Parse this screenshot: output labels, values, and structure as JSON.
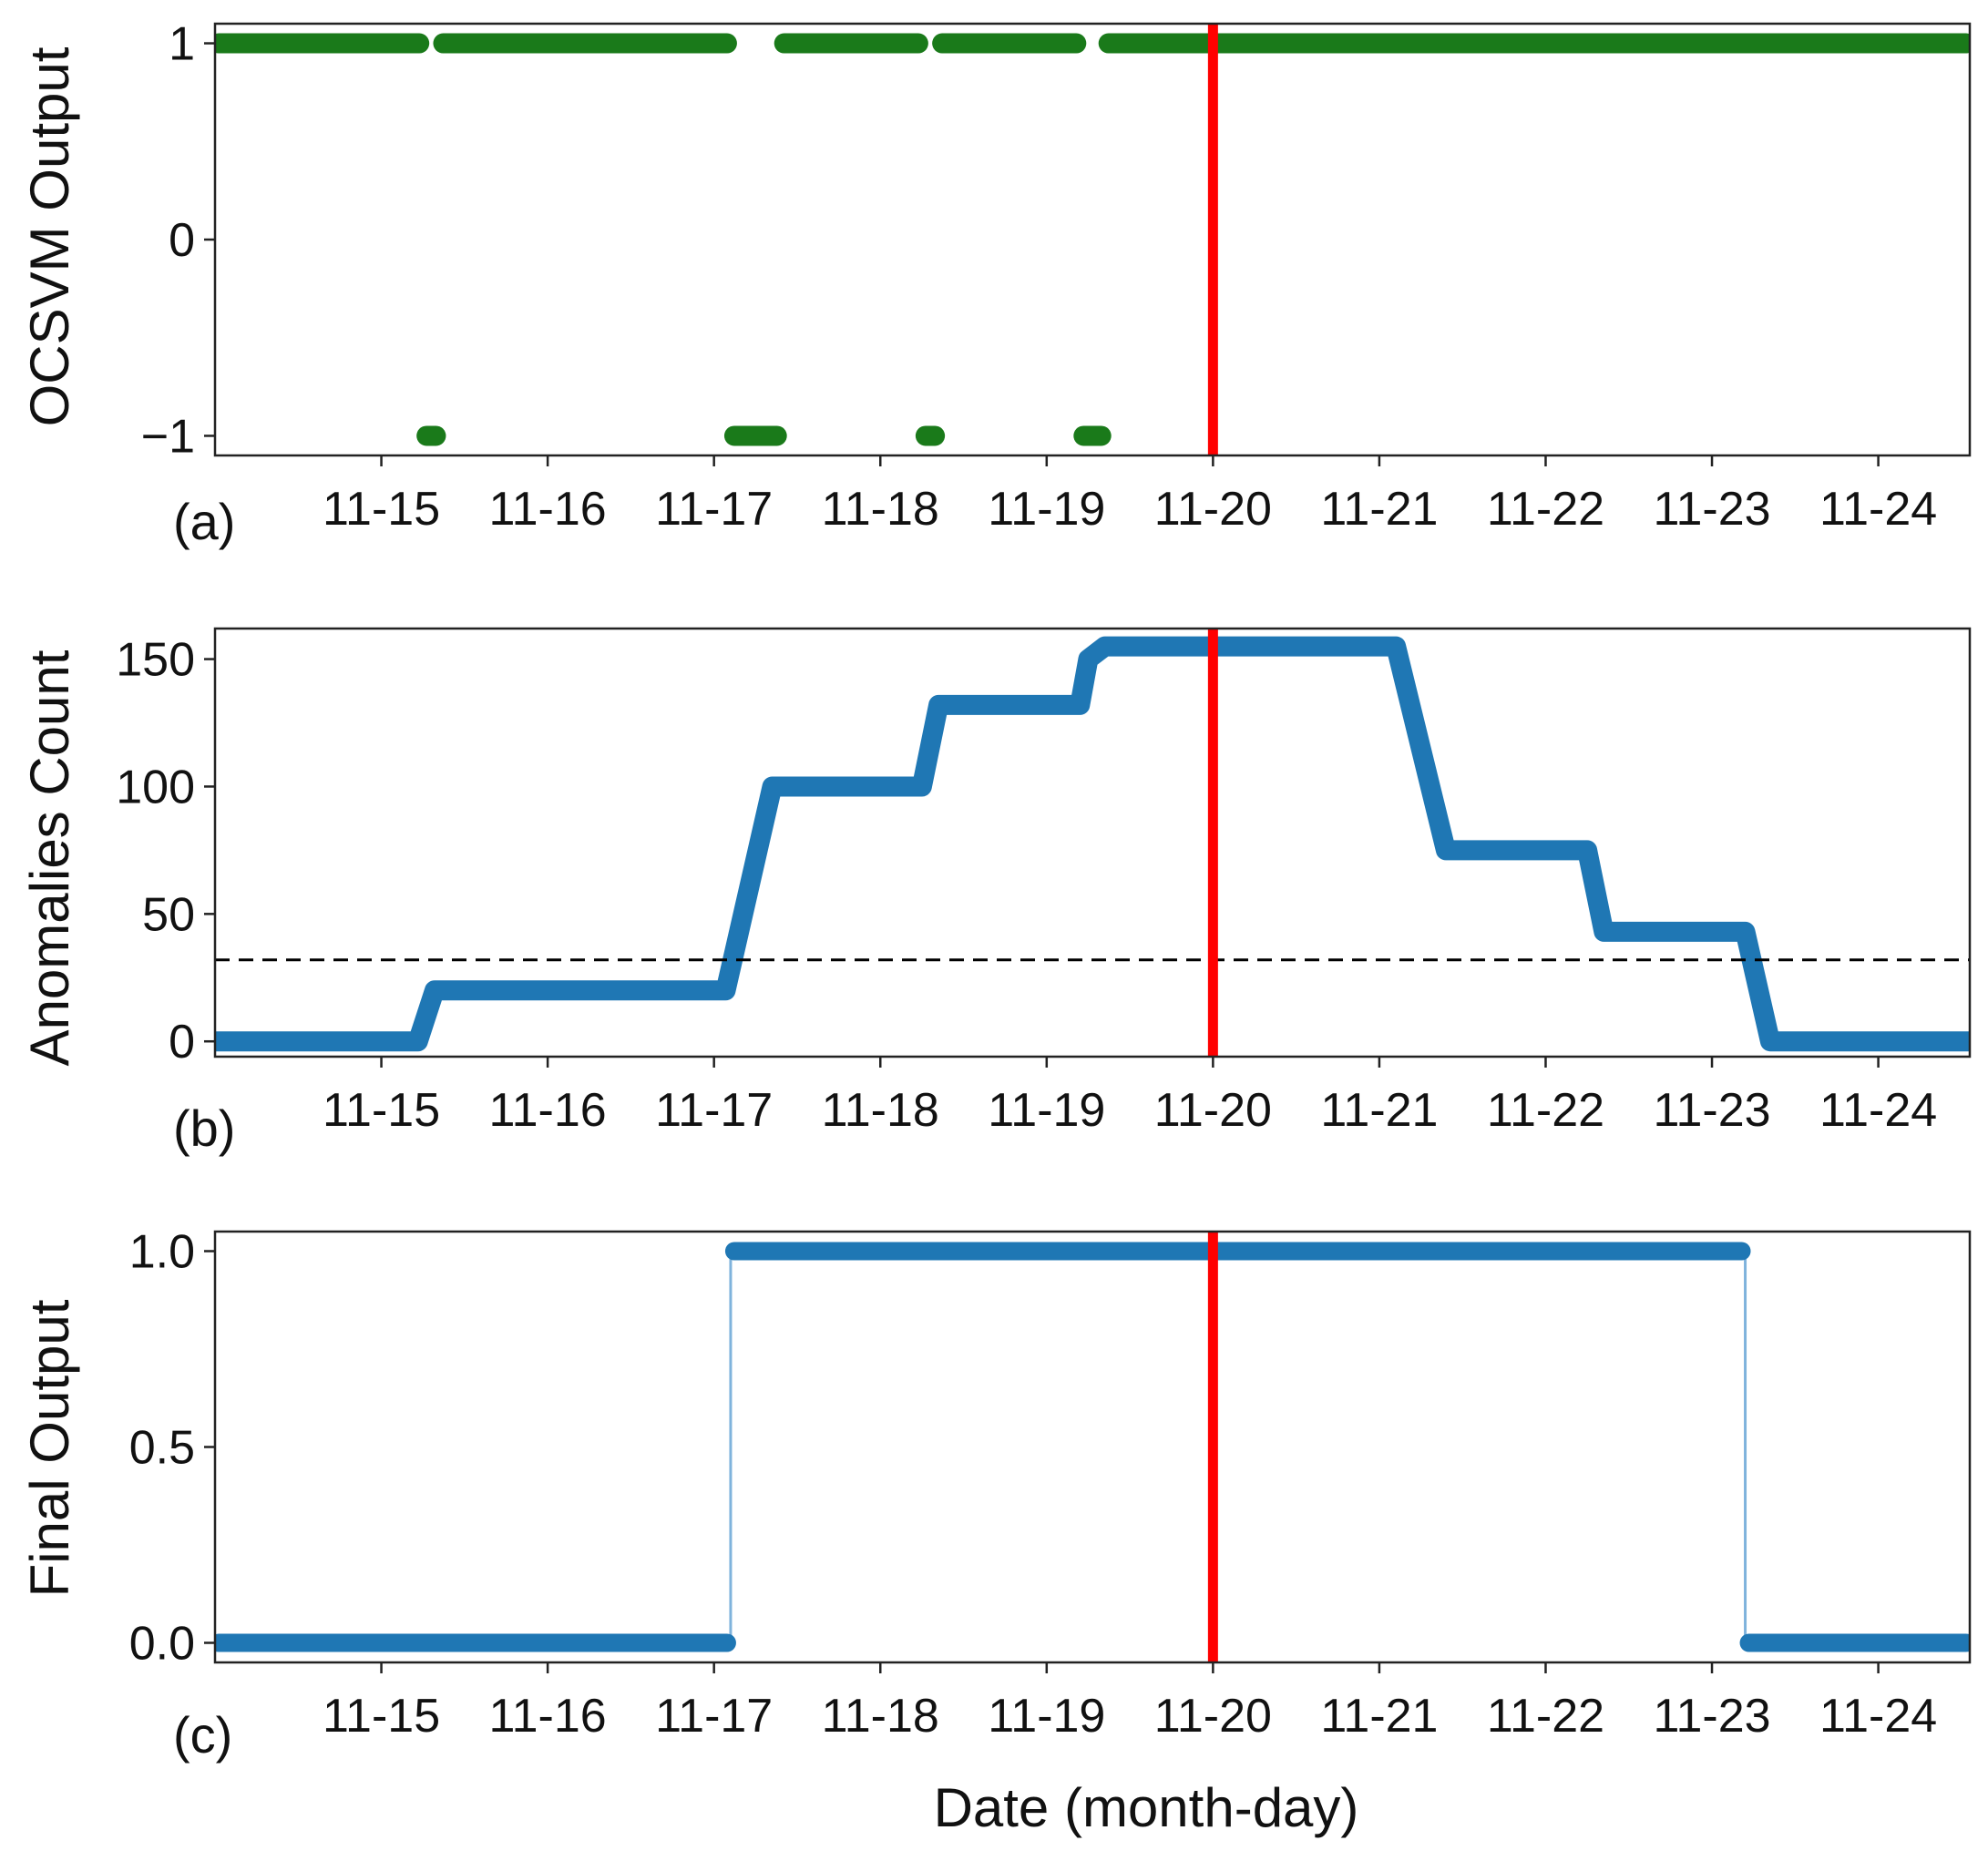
{
  "figure": {
    "xlabel": "Date (month-day)",
    "x_tick_labels": [
      "11-15",
      "11-16",
      "11-17",
      "11-18",
      "11-19",
      "11-20",
      "11-21",
      "11-22",
      "11-23",
      "11-24"
    ],
    "event_marker": {
      "x": 20.0,
      "color": "#ff0000"
    }
  },
  "chart_data": [
    {
      "panel": "(a)",
      "type": "scatter",
      "ylabel": "OCSVM Output",
      "xlim": [
        14.0,
        24.55
      ],
      "ylim": [
        -1.1,
        1.1
      ],
      "y_ticks": [
        -1,
        0,
        1
      ],
      "y_tick_labels": [
        "−1",
        "0",
        "1"
      ],
      "x_ticks": [
        15,
        16,
        17,
        18,
        19,
        20,
        21,
        22,
        23,
        24
      ],
      "x_tick_labels": [
        "11-15",
        "11-16",
        "11-17",
        "11-18",
        "11-19",
        "11-20",
        "11-21",
        "11-22",
        "11-23",
        "11-24"
      ],
      "series": [
        {
          "color": "#1a7a1a",
          "segments": [
            {
              "y": 1,
              "x_start": 14.0,
              "x_end": 15.25
            },
            {
              "y": 1,
              "x_start": 15.35,
              "x_end": 17.1
            },
            {
              "y": 1,
              "x_start": 17.4,
              "x_end": 18.25
            },
            {
              "y": 1,
              "x_start": 18.35,
              "x_end": 19.2
            },
            {
              "y": 1,
              "x_start": 19.35,
              "x_end": 24.55
            },
            {
              "y": -1,
              "x_start": 15.25,
              "x_end": 15.35
            },
            {
              "y": -1,
              "x_start": 17.1,
              "x_end": 17.4
            },
            {
              "y": -1,
              "x_start": 18.25,
              "x_end": 18.35
            },
            {
              "y": -1,
              "x_start": 19.2,
              "x_end": 19.35
            }
          ]
        }
      ]
    },
    {
      "panel": "(b)",
      "type": "line",
      "ylabel": "Anomalies Count",
      "xlim": [
        14.0,
        24.55
      ],
      "ylim": [
        -6,
        162
      ],
      "y_ticks": [
        0,
        50,
        100,
        150
      ],
      "y_tick_labels": [
        "0",
        "50",
        "100",
        "150"
      ],
      "x_ticks": [
        15,
        16,
        17,
        18,
        19,
        20,
        21,
        22,
        23,
        24
      ],
      "x_tick_labels": [
        "11-15",
        "11-16",
        "11-17",
        "11-18",
        "11-19",
        "11-20",
        "11-21",
        "11-22",
        "11-23",
        "11-24"
      ],
      "threshold": 32,
      "series": [
        {
          "color": "#1f77b4",
          "x": [
            14.0,
            15.22,
            15.32,
            17.07,
            17.35,
            18.25,
            18.35,
            19.2,
            19.25,
            19.35,
            21.1,
            21.4,
            22.25,
            22.35,
            23.2,
            23.35,
            24.55
          ],
          "y": [
            0,
            0,
            20,
            20,
            100,
            100,
            132,
            132,
            150,
            155,
            155,
            75,
            75,
            43,
            43,
            0,
            0
          ]
        }
      ]
    },
    {
      "panel": "(c)",
      "type": "line",
      "ylabel": "Final Output",
      "xlim": [
        14.0,
        24.55
      ],
      "ylim": [
        -0.05,
        1.05
      ],
      "y_ticks": [
        0.0,
        0.5,
        1.0
      ],
      "y_tick_labels": [
        "0.0",
        "0.5",
        "1.0"
      ],
      "x_ticks": [
        15,
        16,
        17,
        18,
        19,
        20,
        21,
        22,
        23,
        24
      ],
      "x_tick_labels": [
        "11-15",
        "11-16",
        "11-17",
        "11-18",
        "11-19",
        "11-20",
        "11-21",
        "11-22",
        "11-23",
        "11-24"
      ],
      "series": [
        {
          "color": "#1f77b4",
          "x": [
            14.0,
            17.1,
            17.1,
            23.2,
            23.2,
            24.55
          ],
          "y": [
            0,
            0,
            1,
            1,
            0,
            0
          ]
        }
      ]
    }
  ]
}
